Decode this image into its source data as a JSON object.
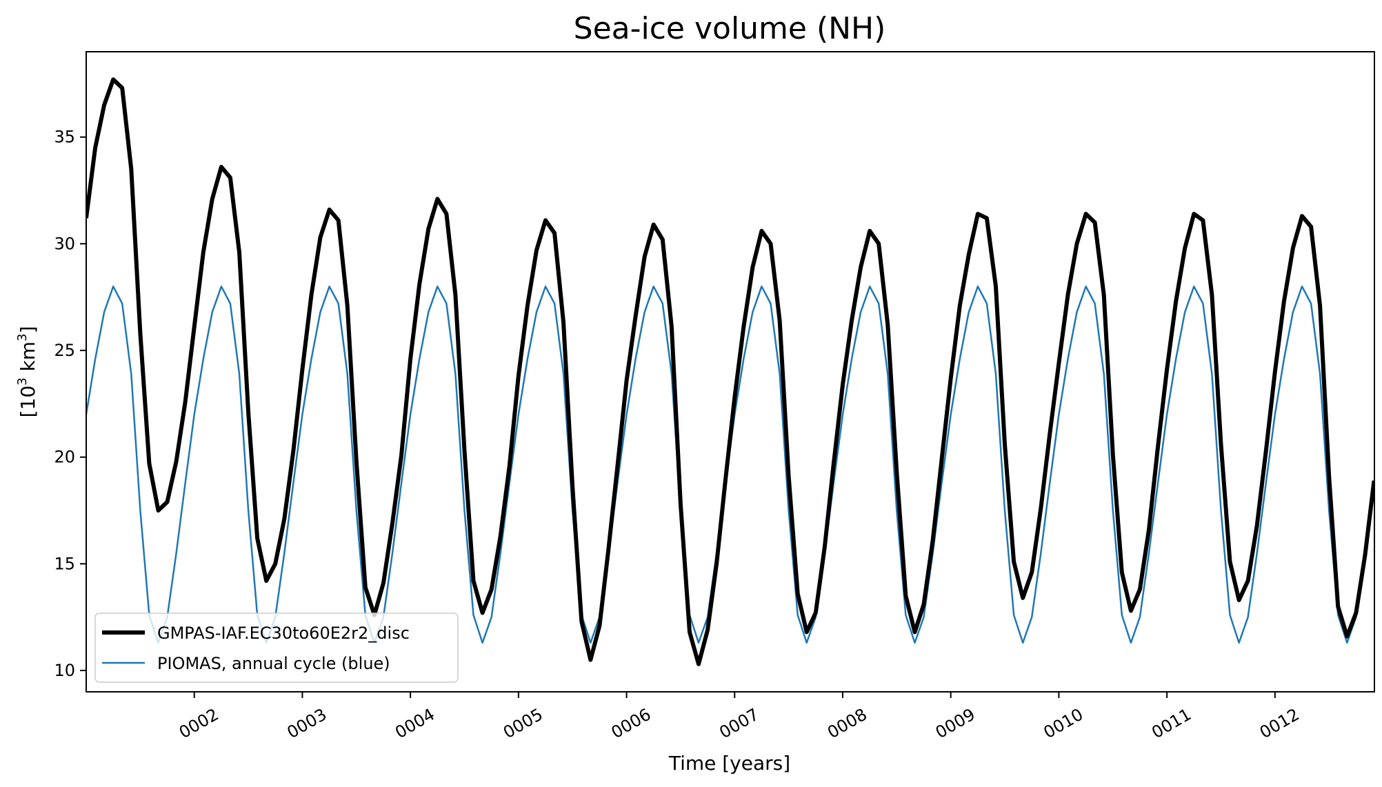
{
  "chart_data": {
    "type": "line",
    "title": "Sea-ice volume (NH)",
    "xlabel": "Time [years]",
    "ylabel_base": "[10",
    "ylabel_sup": "3",
    "ylabel_mid": " km",
    "ylabel_sup2": "3",
    "ylabel_end": "]",
    "xlim": [
      1.0,
      12.92
    ],
    "ylim": [
      9.0,
      39.0
    ],
    "xticks": [
      2,
      3,
      4,
      5,
      6,
      7,
      8,
      9,
      10,
      11,
      12
    ],
    "xticklabels": [
      "0002",
      "0003",
      "0004",
      "0005",
      "0006",
      "0007",
      "0008",
      "0009",
      "0010",
      "0011",
      "0012"
    ],
    "yticks": [
      10,
      15,
      20,
      25,
      30,
      35
    ],
    "yticklabels": [
      "10",
      "15",
      "20",
      "25",
      "30",
      "35"
    ],
    "grid": false,
    "legend_position": "lower-left",
    "series": [
      {
        "name": "GMPAS-IAF.EC30to60E2r2_disc",
        "color": "#000000",
        "years": [
          {
            "year": 1,
            "values": [
              31.2,
              34.5,
              36.5,
              37.7,
              37.3,
              33.5,
              25.8,
              19.7,
              17.5,
              17.9,
              19.8,
              22.6
            ]
          },
          {
            "year": 2,
            "values": [
              26.1,
              29.6,
              32.1,
              33.6,
              33.1,
              29.6,
              22.1,
              16.2,
              14.2,
              15.0,
              17.1,
              20.3
            ]
          },
          {
            "year": 3,
            "values": [
              24.1,
              27.6,
              30.3,
              31.6,
              31.1,
              27.1,
              19.8,
              13.9,
              12.6,
              14.1,
              16.9,
              20.1
            ]
          },
          {
            "year": 4,
            "values": [
              24.6,
              28.1,
              30.7,
              32.1,
              31.4,
              27.6,
              20.3,
              14.2,
              12.7,
              13.8,
              16.3,
              19.6
            ]
          },
          {
            "year": 5,
            "values": [
              23.8,
              27.1,
              29.7,
              31.1,
              30.5,
              26.3,
              18.6,
              12.3,
              10.5,
              12.1,
              15.7,
              19.6
            ]
          },
          {
            "year": 6,
            "values": [
              23.6,
              26.6,
              29.4,
              30.9,
              30.2,
              26.1,
              17.8,
              11.8,
              10.3,
              11.9,
              15.0,
              19.0
            ]
          },
          {
            "year": 7,
            "values": [
              22.8,
              26.1,
              28.9,
              30.6,
              30.0,
              26.4,
              19.1,
              13.6,
              11.8,
              12.7,
              15.8,
              19.7
            ]
          },
          {
            "year": 8,
            "values": [
              23.4,
              26.4,
              28.9,
              30.6,
              30.0,
              26.2,
              19.3,
              13.5,
              11.8,
              13.1,
              16.1,
              19.9
            ]
          },
          {
            "year": 9,
            "values": [
              23.7,
              27.1,
              29.5,
              31.4,
              31.2,
              28.0,
              20.6,
              15.1,
              13.4,
              14.6,
              17.6,
              21.1
            ]
          },
          {
            "year": 10,
            "values": [
              24.4,
              27.6,
              30.0,
              31.4,
              31.0,
              27.6,
              20.1,
              14.6,
              12.8,
              13.8,
              16.6,
              20.5
            ]
          },
          {
            "year": 11,
            "values": [
              24.1,
              27.3,
              29.8,
              31.4,
              31.1,
              27.6,
              20.6,
              15.1,
              13.3,
              14.2,
              16.8,
              20.3
            ]
          },
          {
            "year": 12,
            "values": [
              24.0,
              27.3,
              29.8,
              31.3,
              30.8,
              27.1,
              19.1,
              13.0,
              11.6,
              12.7,
              15.4,
              18.9
            ]
          }
        ]
      },
      {
        "name": "PIOMAS, annual cycle (blue)",
        "color": "#1f77b4",
        "annual_cycle": [
          22.0,
          24.6,
          26.8,
          28.0,
          27.2,
          23.9,
          17.5,
          12.6,
          11.3,
          12.5,
          15.5,
          18.8
        ],
        "cycle_repeats_years": [
          1,
          2,
          3,
          4,
          5,
          6,
          7,
          8,
          9,
          10,
          11,
          12
        ]
      }
    ]
  }
}
